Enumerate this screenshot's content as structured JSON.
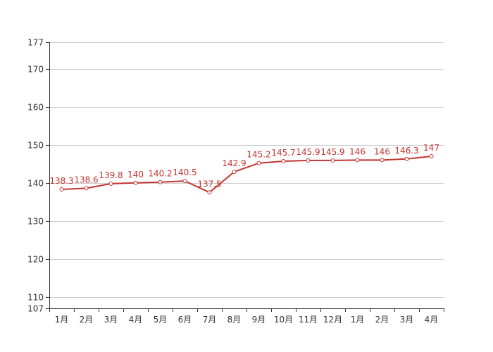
{
  "chart_data": {
    "type": "line",
    "title": "",
    "xlabel": "",
    "ylabel": "",
    "categories": [
      "1月",
      "2月",
      "3月",
      "4月",
      "5月",
      "6月",
      "7月",
      "8月",
      "9月",
      "10月",
      "11月",
      "12月",
      "1月",
      "2月",
      "3月",
      "4月"
    ],
    "series": [
      {
        "values": [
          138.3,
          138.6,
          139.8,
          140,
          140.2,
          140.5,
          137.5,
          142.9,
          145.2,
          145.7,
          145.9,
          145.9,
          146,
          146,
          146.3,
          147
        ],
        "labels": [
          "138.3",
          "138.6",
          "139.8",
          "140",
          "140.2",
          "140.5",
          "137.5",
          "142.9",
          "145.2",
          "145.7",
          "145.9",
          "145.9",
          "146",
          "146",
          "146.3",
          "147"
        ],
        "color": "#c23531"
      }
    ],
    "ylim": [
      107,
      177
    ],
    "yticks": [
      107,
      110,
      120,
      130,
      140,
      150,
      160,
      170,
      177
    ],
    "ytick_labels": [
      "107",
      "110",
      "120",
      "130",
      "140",
      "150",
      "160",
      "170",
      "177"
    ],
    "grid": true,
    "legend": "none"
  }
}
